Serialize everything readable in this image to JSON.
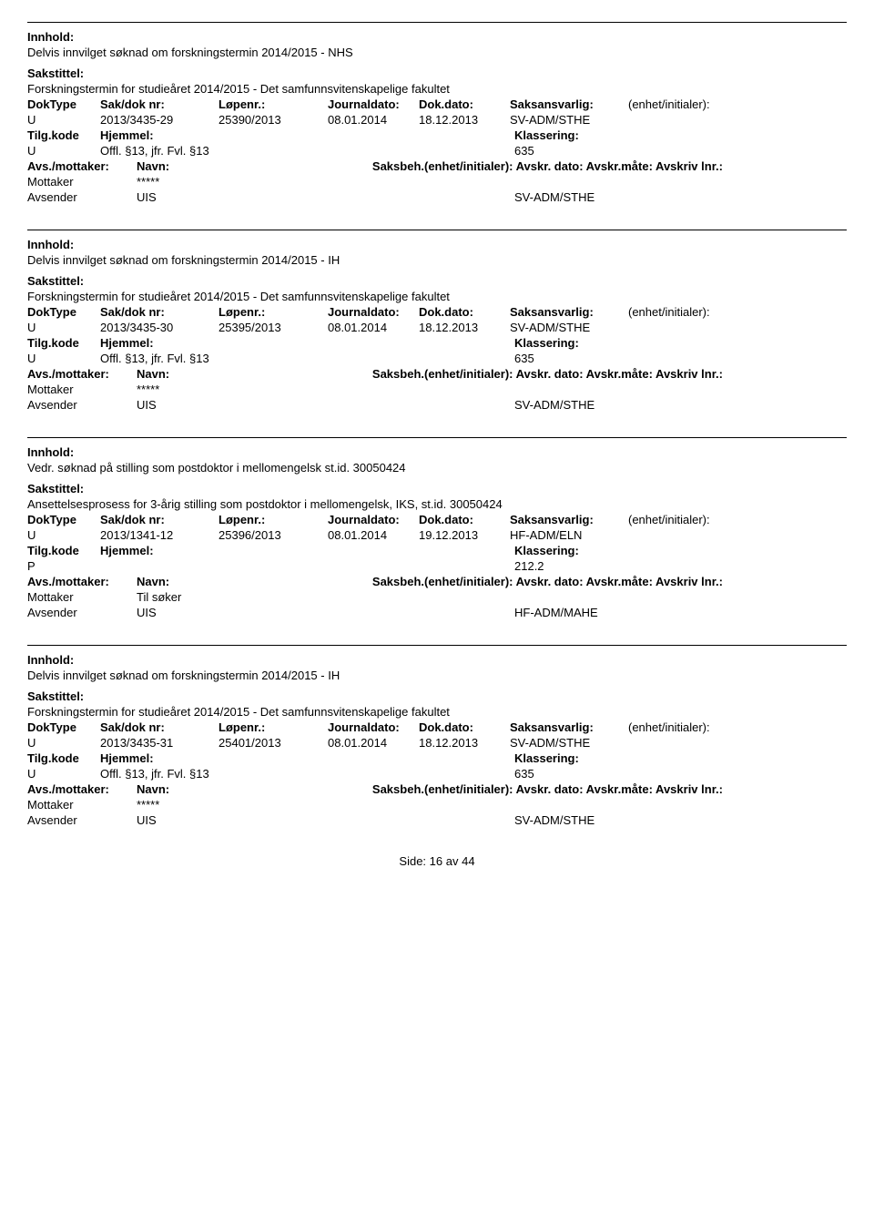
{
  "labels": {
    "innhold": "Innhold:",
    "sakstitel": "Sakstittel:",
    "doktype": "DokType",
    "sakdok": "Sak/dok nr:",
    "lopenr": "Løpenr.:",
    "journaldato": "Journaldato:",
    "dokdato": "Dok.dato:",
    "saksans": "Saksansvarlig:",
    "enhet": "(enhet/initialer):",
    "tilgkode": "Tilg.kode",
    "hjemmel": "Hjemmel:",
    "klassering": "Klassering:",
    "avsmott": "Avs./mottaker:",
    "navn": "Navn:",
    "saksbeh_line": "Saksbeh.(enhet/initialer): Avskr. dato:  Avskr.måte: Avskriv lnr.:",
    "mottaker": "Mottaker",
    "avsender": "Avsender",
    "side": "Side:",
    "av": "av"
  },
  "page": {
    "current": 16,
    "total": 44
  },
  "records": [
    {
      "innhold": "Delvis innvilget søknad om forskningstermin 2014/2015 - NHS",
      "sakstitel": "Forskningstermin for studieåret 2014/2015 - Det samfunnsvitenskapelige fakultet",
      "doktype": "U",
      "sakdok": "2013/3435-29",
      "lopenr": "25390/2013",
      "journaldato": "08.01.2014",
      "dokdato": "18.12.2013",
      "saksans": "SV-ADM/STHE",
      "tilgkode": "U",
      "hjemmel": "Offl. §13, jfr. Fvl. §13",
      "klassering": "635",
      "mottaker_navn": "*****",
      "avsender_navn": "UIS",
      "unit": "SV-ADM/STHE"
    },
    {
      "innhold": "Delvis innvilget søknad om forskningstermin 2014/2015 - IH",
      "sakstitel": "Forskningstermin for studieåret 2014/2015 - Det samfunnsvitenskapelige fakultet",
      "doktype": "U",
      "sakdok": "2013/3435-30",
      "lopenr": "25395/2013",
      "journaldato": "08.01.2014",
      "dokdato": "18.12.2013",
      "saksans": "SV-ADM/STHE",
      "tilgkode": "U",
      "hjemmel": "Offl. §13, jfr. Fvl. §13",
      "klassering": "635",
      "mottaker_navn": "*****",
      "avsender_navn": "UIS",
      "unit": "SV-ADM/STHE"
    },
    {
      "innhold": "Vedr. søknad på stilling som postdoktor i mellomengelsk st.id. 30050424",
      "sakstitel": "Ansettelsesprosess for 3-årig stilling som postdoktor i mellomengelsk, IKS, st.id. 30050424",
      "doktype": "U",
      "sakdok": "2013/1341-12",
      "lopenr": "25396/2013",
      "journaldato": "08.01.2014",
      "dokdato": "19.12.2013",
      "saksans": "HF-ADM/ELN",
      "tilgkode": "P",
      "hjemmel": "",
      "klassering": "212.2",
      "mottaker_navn": "Til søker",
      "avsender_navn": "UIS",
      "unit": "HF-ADM/MAHE"
    },
    {
      "innhold": "Delvis innvilget søknad om forskningstermin 2014/2015 - IH",
      "sakstitel": "Forskningstermin for studieåret 2014/2015 - Det samfunnsvitenskapelige fakultet",
      "doktype": "U",
      "sakdok": "2013/3435-31",
      "lopenr": "25401/2013",
      "journaldato": "08.01.2014",
      "dokdato": "18.12.2013",
      "saksans": "SV-ADM/STHE",
      "tilgkode": "U",
      "hjemmel": "Offl. §13, jfr. Fvl. §13",
      "klassering": "635",
      "mottaker_navn": "*****",
      "avsender_navn": "UIS",
      "unit": "SV-ADM/STHE"
    }
  ]
}
